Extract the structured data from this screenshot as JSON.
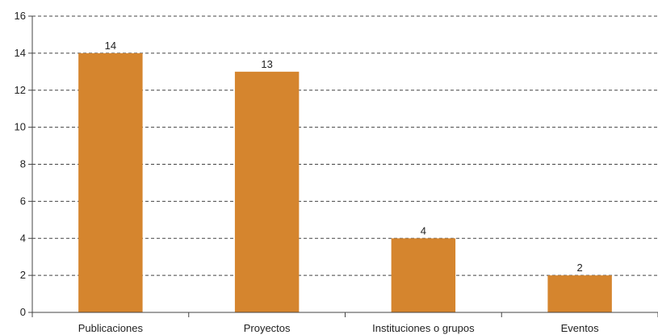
{
  "chart_data": {
    "type": "bar",
    "title": "",
    "xlabel": "",
    "ylabel": "",
    "categories": [
      "Publicaciones",
      "Proyectos",
      "Instituciones o grupos",
      "Eventos"
    ],
    "values": [
      14,
      13,
      4,
      2
    ],
    "ylim": [
      0,
      16
    ],
    "yticks": [
      0,
      2,
      4,
      6,
      8,
      10,
      12,
      14,
      16
    ],
    "grid": "horizontal-dashed",
    "legend": "none",
    "bar_color": "#D5852E"
  }
}
